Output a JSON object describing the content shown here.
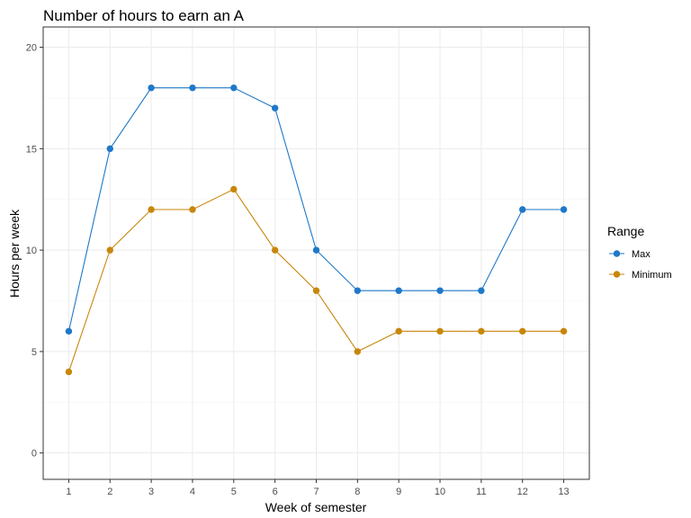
{
  "chart_data": {
    "type": "line",
    "title": "Number of hours to earn an A",
    "xlabel": "Week of semester",
    "ylabel": "Hours per week",
    "x": [
      1,
      2,
      3,
      4,
      5,
      6,
      7,
      8,
      9,
      10,
      11,
      12,
      13
    ],
    "series": [
      {
        "name": "Max",
        "color": "#1f78c8",
        "values": [
          6,
          15,
          18,
          18,
          18,
          17,
          10,
          8,
          8,
          8,
          8,
          12,
          12
        ]
      },
      {
        "name": "Minimum",
        "color": "#c8860a",
        "values": [
          4,
          10,
          12,
          12,
          13,
          10,
          8,
          5,
          6,
          6,
          6,
          6,
          6
        ]
      }
    ],
    "xlim": [
      0.38,
      13.62
    ],
    "ylim": [
      -1.3,
      21
    ],
    "xticks": [
      "1",
      "2",
      "3",
      "4",
      "5",
      "6",
      "7",
      "8",
      "9",
      "10",
      "11",
      "12",
      "13"
    ],
    "yticks": [
      "0",
      "5",
      "10",
      "15",
      "20"
    ],
    "grid": true,
    "legend": {
      "title": "Range",
      "position": "right"
    }
  }
}
